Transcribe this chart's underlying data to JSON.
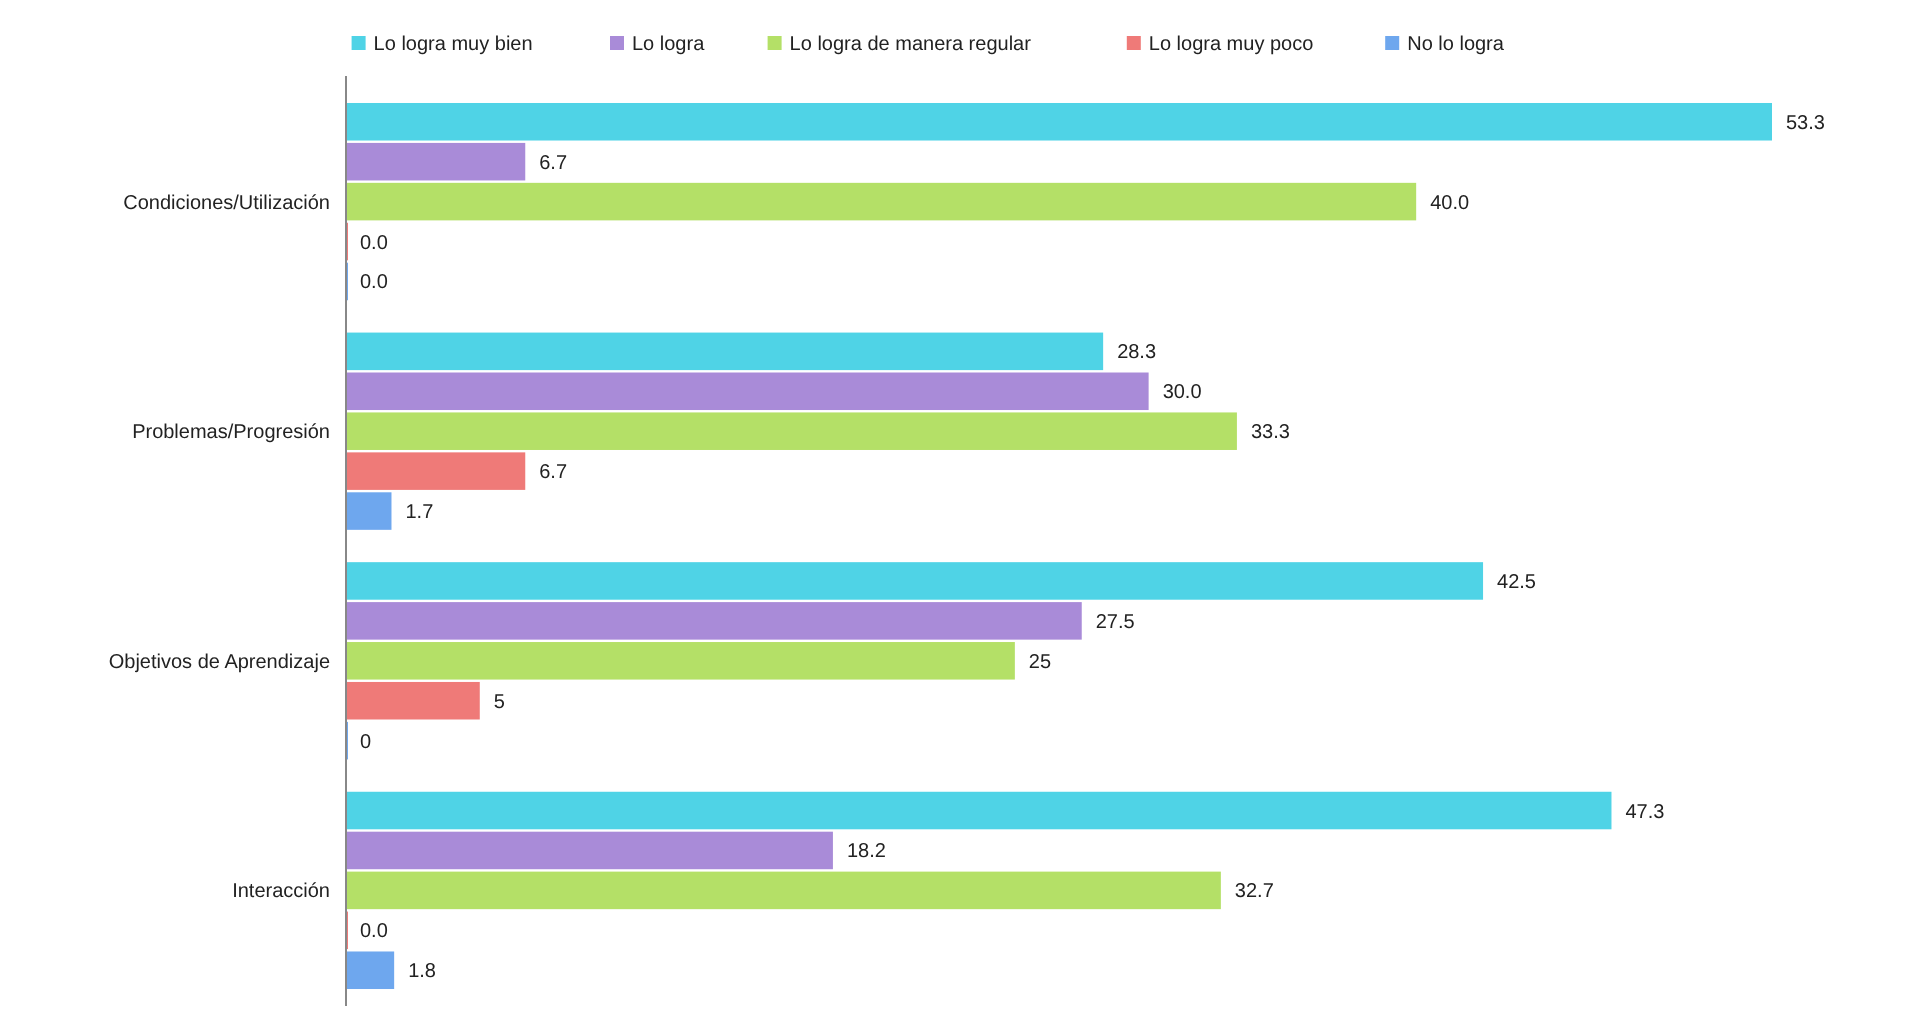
{
  "chart_data": {
    "type": "bar",
    "orientation": "horizontal",
    "legend": "top",
    "categories": [
      "Condiciones/Utilización",
      "Problemas/Progresión",
      "Objetivos de Aprendizaje",
      "Interacción"
    ],
    "series": [
      {
        "name": "Lo logra muy bien",
        "color": "#4fd3e6",
        "values": [
          53.3,
          28.3,
          42.5,
          47.3
        ],
        "value_labels": [
          "53.3",
          "28.3",
          "42.5",
          "47.3"
        ]
      },
      {
        "name": "Lo logra",
        "color": "#a98bd8",
        "values": [
          6.7,
          30.0,
          27.5,
          18.2
        ],
        "value_labels": [
          "6.7",
          "30.0",
          "27.5",
          "18.2"
        ]
      },
      {
        "name": "Lo logra de manera regular",
        "color": "#b4e067",
        "values": [
          40.0,
          33.3,
          25,
          32.7
        ],
        "value_labels": [
          "40.0",
          "33.3",
          "25",
          "32.7"
        ]
      },
      {
        "name": "Lo logra muy poco",
        "color": "#ef7a78",
        "values": [
          0.0,
          6.7,
          5,
          0.0
        ],
        "value_labels": [
          "0.0",
          "6.7",
          "5",
          "0.0"
        ]
      },
      {
        "name": "No lo logra",
        "color": "#6ea7ee",
        "values": [
          0.0,
          1.7,
          0,
          1.8
        ],
        "value_labels": [
          "0.0",
          "1.7",
          "0",
          "1.8"
        ]
      }
    ]
  }
}
